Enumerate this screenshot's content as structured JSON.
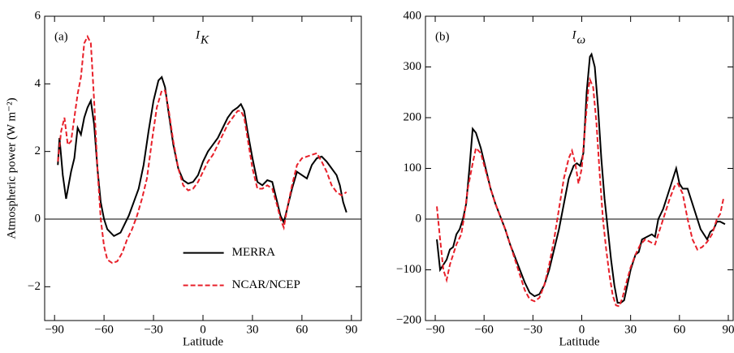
{
  "chart_data": [
    {
      "type": "line",
      "panel_label": "(a)",
      "title": "I",
      "title_subscript": "K",
      "x_label": "Latitude",
      "y_label": "Atmospheric power (W m⁻²)",
      "xlim": [
        -96,
        96
      ],
      "ylim": [
        -3,
        6
      ],
      "xticks": [
        {
          "value": -90,
          "label": "−90"
        },
        {
          "value": -60,
          "label": "−60"
        },
        {
          "value": -30,
          "label": "−30"
        },
        0,
        30,
        60,
        90
      ],
      "yticks": [
        {
          "value": -2,
          "label": "−2"
        },
        0,
        2,
        4,
        6
      ],
      "zero_line": true,
      "legend": "lower center",
      "series": [
        {
          "name": "MERRA",
          "color": "#000000",
          "dash": "solid",
          "x": [
            -88,
            -87,
            -85,
            -83,
            -80,
            -78,
            -76,
            -74,
            -72,
            -70,
            -68,
            -66,
            -64,
            -62,
            -60,
            -58,
            -56,
            -54,
            -52,
            -50,
            -48,
            -45,
            -42,
            -39,
            -36,
            -33,
            -30,
            -27,
            -25,
            -23,
            -21,
            -18,
            -15,
            -12,
            -9,
            -6,
            -3,
            0,
            3,
            6,
            9,
            12,
            15,
            18,
            21,
            23,
            25,
            27,
            30,
            33,
            36,
            39,
            42,
            45,
            47,
            49,
            51,
            54,
            57,
            60,
            63,
            66,
            69,
            72,
            75,
            78,
            81,
            83,
            85,
            87
          ],
          "values": [
            1.6,
            2.4,
            1.3,
            0.6,
            1.4,
            1.8,
            2.7,
            2.5,
            3.0,
            3.3,
            3.5,
            2.8,
            1.5,
            0.5,
            0.0,
            -0.3,
            -0.4,
            -0.5,
            -0.45,
            -0.4,
            -0.2,
            0.1,
            0.5,
            0.9,
            1.6,
            2.6,
            3.5,
            4.1,
            4.2,
            3.9,
            3.2,
            2.2,
            1.5,
            1.15,
            1.05,
            1.1,
            1.3,
            1.7,
            2.0,
            2.2,
            2.4,
            2.7,
            3.0,
            3.2,
            3.3,
            3.4,
            3.2,
            2.6,
            1.8,
            1.1,
            1.0,
            1.15,
            1.1,
            0.5,
            0.1,
            -0.1,
            0.3,
            0.9,
            1.4,
            1.3,
            1.2,
            1.6,
            1.8,
            1.85,
            1.7,
            1.5,
            1.3,
            1.0,
            0.5,
            0.2
          ]
        },
        {
          "name": "NCAR/NCEP",
          "color": "#e8202a",
          "dash": "dashed",
          "x": [
            -88,
            -86,
            -84,
            -82,
            -80,
            -78,
            -76,
            -74,
            -72,
            -70,
            -68,
            -66,
            -64,
            -62,
            -60,
            -58,
            -55,
            -52,
            -49,
            -46,
            -43,
            -40,
            -37,
            -34,
            -31,
            -28,
            -25,
            -23,
            -21,
            -18,
            -15,
            -12,
            -9,
            -6,
            -3,
            0,
            3,
            6,
            9,
            12,
            15,
            18,
            21,
            23,
            25,
            27,
            30,
            33,
            36,
            39,
            42,
            45,
            47,
            49,
            51,
            54,
            57,
            60,
            63,
            66,
            69,
            72,
            75,
            78,
            81,
            84,
            87
          ],
          "values": [
            1.7,
            2.6,
            3.0,
            2.2,
            2.3,
            3.0,
            3.7,
            4.2,
            5.2,
            5.4,
            5.2,
            3.5,
            1.5,
            0.0,
            -0.8,
            -1.2,
            -1.3,
            -1.25,
            -1.0,
            -0.6,
            -0.3,
            0.1,
            0.6,
            1.2,
            2.3,
            3.3,
            3.8,
            3.8,
            3.3,
            2.3,
            1.5,
            1.0,
            0.85,
            0.9,
            1.1,
            1.4,
            1.7,
            1.9,
            2.2,
            2.5,
            2.8,
            3.0,
            3.2,
            3.2,
            3.0,
            2.4,
            1.5,
            0.9,
            0.9,
            1.0,
            0.9,
            0.4,
            0.0,
            -0.25,
            0.3,
            1.0,
            1.6,
            1.8,
            1.85,
            1.9,
            1.95,
            1.7,
            1.4,
            1.0,
            0.8,
            0.7,
            0.8
          ]
        }
      ]
    },
    {
      "type": "line",
      "panel_label": "(b)",
      "title": "I",
      "title_subscript": "ω",
      "x_label": "Latitude",
      "xlim": [
        -96,
        93
      ],
      "ylim": [
        -200,
        400
      ],
      "xticks": [
        {
          "value": -90,
          "label": "−90"
        },
        {
          "value": -60,
          "label": "−60"
        },
        {
          "value": -30,
          "label": "−30"
        },
        0,
        30,
        60,
        90
      ],
      "yticks": [
        {
          "value": -200,
          "label": "−200"
        },
        {
          "value": -100,
          "label": "−100"
        },
        0,
        100,
        200,
        300,
        400
      ],
      "zero_line": true,
      "series": [
        {
          "name": "MERRA",
          "color": "#000000",
          "dash": "solid",
          "x": [
            -89,
            -87,
            -85,
            -83,
            -81,
            -79,
            -77,
            -75,
            -73,
            -71,
            -69,
            -67,
            -65,
            -62,
            -59,
            -56,
            -53,
            -50,
            -47,
            -44,
            -41,
            -38,
            -35,
            -32,
            -29,
            -26,
            -23,
            -20,
            -17,
            -14,
            -11,
            -8,
            -5,
            -3,
            -1,
            1,
            3,
            5,
            6,
            8,
            10,
            12,
            14,
            16,
            18,
            20,
            22,
            24,
            26,
            28,
            30,
            33,
            35,
            37,
            40,
            43,
            45,
            47,
            50,
            53,
            56,
            58,
            60,
            62,
            65,
            67,
            69,
            71,
            73,
            75,
            77,
            79,
            81,
            83,
            85,
            88
          ],
          "values": [
            -40,
            -100,
            -90,
            -80,
            -60,
            -55,
            -30,
            -20,
            0,
            30,
            100,
            178,
            170,
            140,
            100,
            60,
            30,
            5,
            -20,
            -50,
            -75,
            -100,
            -125,
            -145,
            -152,
            -148,
            -130,
            -100,
            -60,
            -20,
            30,
            80,
            105,
            110,
            105,
            130,
            250,
            320,
            325,
            300,
            220,
            120,
            40,
            -20,
            -80,
            -130,
            -165,
            -165,
            -160,
            -130,
            -100,
            -70,
            -65,
            -40,
            -35,
            -30,
            -35,
            0,
            20,
            50,
            80,
            100,
            70,
            60,
            60,
            40,
            20,
            0,
            -20,
            -30,
            -40,
            -25,
            -20,
            -5,
            -5,
            -10
          ]
        },
        {
          "name": "NCAR/NCEP",
          "color": "#e8202a",
          "dash": "dashed",
          "x": [
            -89,
            -87,
            -85,
            -83,
            -81,
            -79,
            -77,
            -74,
            -72,
            -70,
            -67,
            -65,
            -62,
            -59,
            -56,
            -53,
            -50,
            -47,
            -44,
            -41,
            -38,
            -35,
            -32,
            -29,
            -26,
            -23,
            -20,
            -17,
            -14,
            -11,
            -8,
            -6,
            -4,
            -2,
            0,
            2,
            4,
            5,
            7,
            9,
            11,
            13,
            15,
            17,
            19,
            21,
            23,
            25,
            27,
            30,
            33,
            36,
            39,
            42,
            45,
            48,
            51,
            54,
            57,
            59,
            62,
            65,
            68,
            71,
            74,
            77,
            80,
            83,
            85,
            87
          ],
          "values": [
            25,
            -40,
            -100,
            -120,
            -90,
            -70,
            -50,
            -30,
            10,
            60,
            110,
            140,
            130,
            95,
            60,
            30,
            5,
            -20,
            -50,
            -80,
            -110,
            -140,
            -158,
            -162,
            -155,
            -130,
            -90,
            -40,
            20,
            80,
            120,
            135,
            110,
            70,
            100,
            180,
            255,
            275,
            260,
            190,
            90,
            0,
            -60,
            -110,
            -150,
            -170,
            -172,
            -155,
            -130,
            -95,
            -70,
            -50,
            -40,
            -45,
            -50,
            -20,
            10,
            40,
            65,
            70,
            50,
            0,
            -40,
            -60,
            -55,
            -45,
            -30,
            0,
            10,
            40
          ]
        }
      ]
    }
  ]
}
